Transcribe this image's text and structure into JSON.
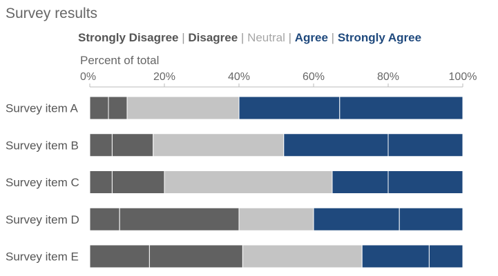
{
  "chart_data": {
    "type": "bar",
    "orientation": "horizontal",
    "stacked": true,
    "title": "Survey results",
    "xlabel": "Percent of total",
    "ylabel": "",
    "xlim": [
      0,
      100
    ],
    "xticks": [
      "0%",
      "20%",
      "40%",
      "60%",
      "80%",
      "100%"
    ],
    "xtick_values": [
      0,
      20,
      40,
      60,
      80,
      100
    ],
    "categories": [
      "Survey item A",
      "Survey item B",
      "Survey item C",
      "Survey item D",
      "Survey item E"
    ],
    "series": [
      {
        "name": "Strongly Disagree",
        "color": "#616161",
        "values": [
          5,
          6,
          6,
          8,
          16
        ]
      },
      {
        "name": "Disagree",
        "color": "#616161",
        "values": [
          5,
          11,
          14,
          32,
          25
        ]
      },
      {
        "name": "Neutral",
        "color": "#c4c4c4",
        "values": [
          30,
          35,
          45,
          20,
          32
        ]
      },
      {
        "name": "Agree",
        "color": "#1f497d",
        "values": [
          27,
          28,
          15,
          23,
          18
        ]
      },
      {
        "name": "Strongly Agree",
        "color": "#1f497d",
        "values": [
          33,
          20,
          20,
          17,
          9
        ]
      }
    ],
    "legend": {
      "placement": "top",
      "label_colors": [
        "#555555",
        "#555555",
        "#a6a6a6",
        "#1f497d",
        "#1f497d"
      ],
      "separator": "|"
    },
    "grid": false
  }
}
